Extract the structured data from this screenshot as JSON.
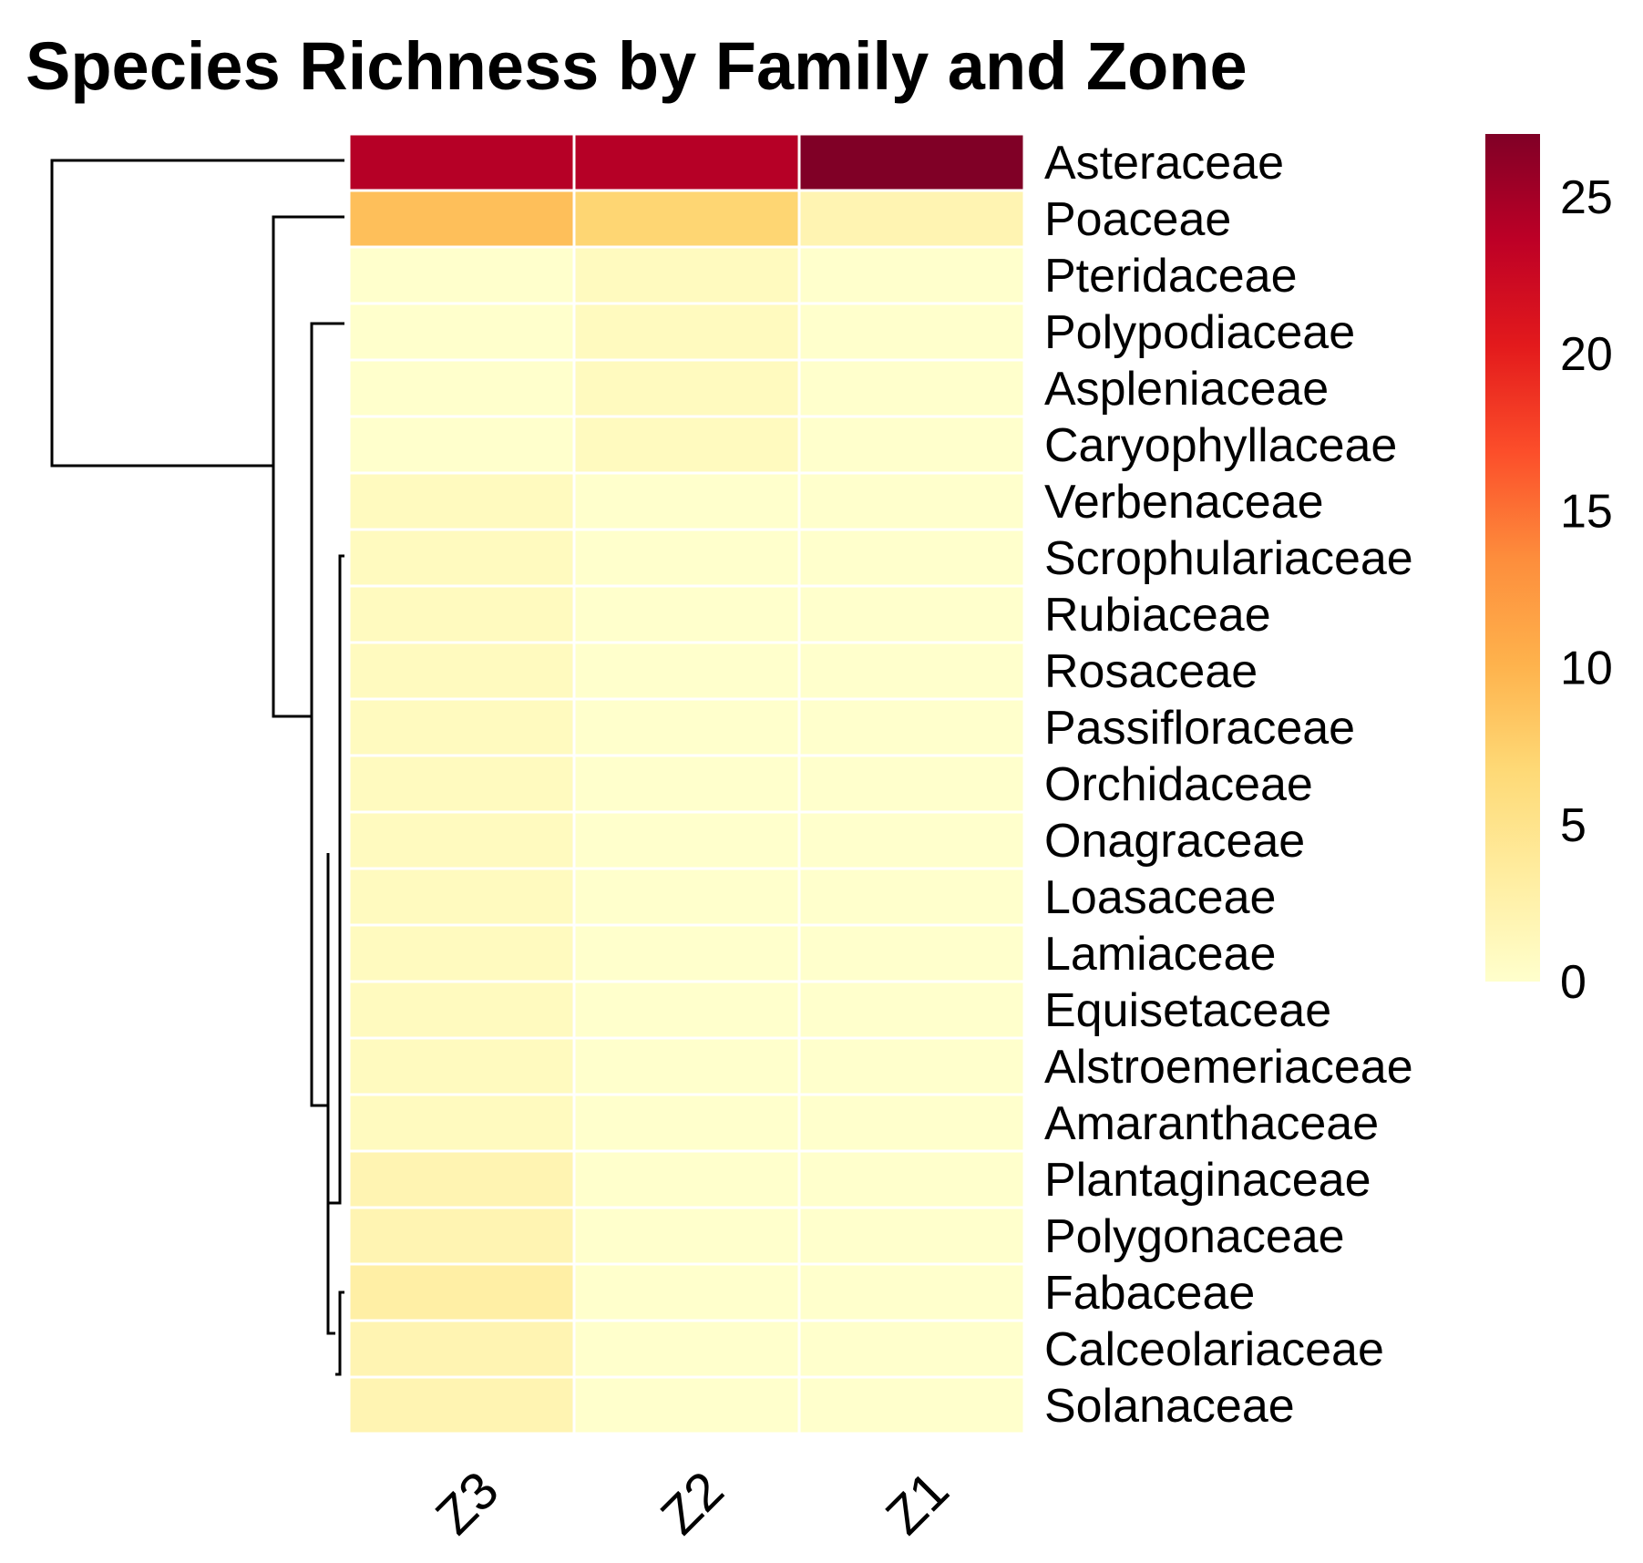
{
  "chart_data": {
    "type": "heatmap",
    "title": "Species Richness by Family and Zone",
    "columns": [
      "Z3",
      "Z2",
      "Z1"
    ],
    "rows": [
      "Asteraceae",
      "Poaceae",
      "Pteridaceae",
      "Polypodiaceae",
      "Aspleniaceae",
      "Caryophyllaceae",
      "Verbenaceae",
      "Scrophulariaceae",
      "Rubiaceae",
      "Rosaceae",
      "Passifloraceae",
      "Orchidaceae",
      "Onagraceae",
      "Loasaceae",
      "Lamiaceae",
      "Equisetaceae",
      "Alstroemeriaceae",
      "Amaranthaceae",
      "Plantaginaceae",
      "Polygonaceae",
      "Fabaceae",
      "Calceolariaceae",
      "Solanaceae"
    ],
    "values": [
      [
        24,
        24,
        27
      ],
      [
        9,
        7,
        2
      ],
      [
        0,
        1,
        0
      ],
      [
        0,
        1,
        0
      ],
      [
        0,
        1,
        0
      ],
      [
        0,
        1,
        0
      ],
      [
        1,
        0,
        0
      ],
      [
        1,
        0,
        0
      ],
      [
        1,
        0,
        0
      ],
      [
        1,
        0,
        0
      ],
      [
        1,
        0,
        0
      ],
      [
        1,
        0,
        0
      ],
      [
        1,
        0,
        0
      ],
      [
        1,
        0,
        0
      ],
      [
        1,
        0,
        0
      ],
      [
        1,
        0,
        0
      ],
      [
        1,
        0,
        0
      ],
      [
        1,
        0,
        0
      ],
      [
        2,
        0,
        0
      ],
      [
        2,
        0,
        0
      ],
      [
        3,
        0,
        0
      ],
      [
        2,
        0,
        0
      ],
      [
        2,
        0,
        0
      ]
    ],
    "colorbar": {
      "min": 0,
      "max": 27,
      "ticks": [
        0,
        5,
        10,
        15,
        20,
        25
      ]
    },
    "colormap": [
      "#ffffcc",
      "#ffeda0",
      "#fed976",
      "#feb24c",
      "#fd8d3c",
      "#fc4e2a",
      "#e31a1c",
      "#bd0026",
      "#800026"
    ],
    "dendrogram": "row"
  }
}
